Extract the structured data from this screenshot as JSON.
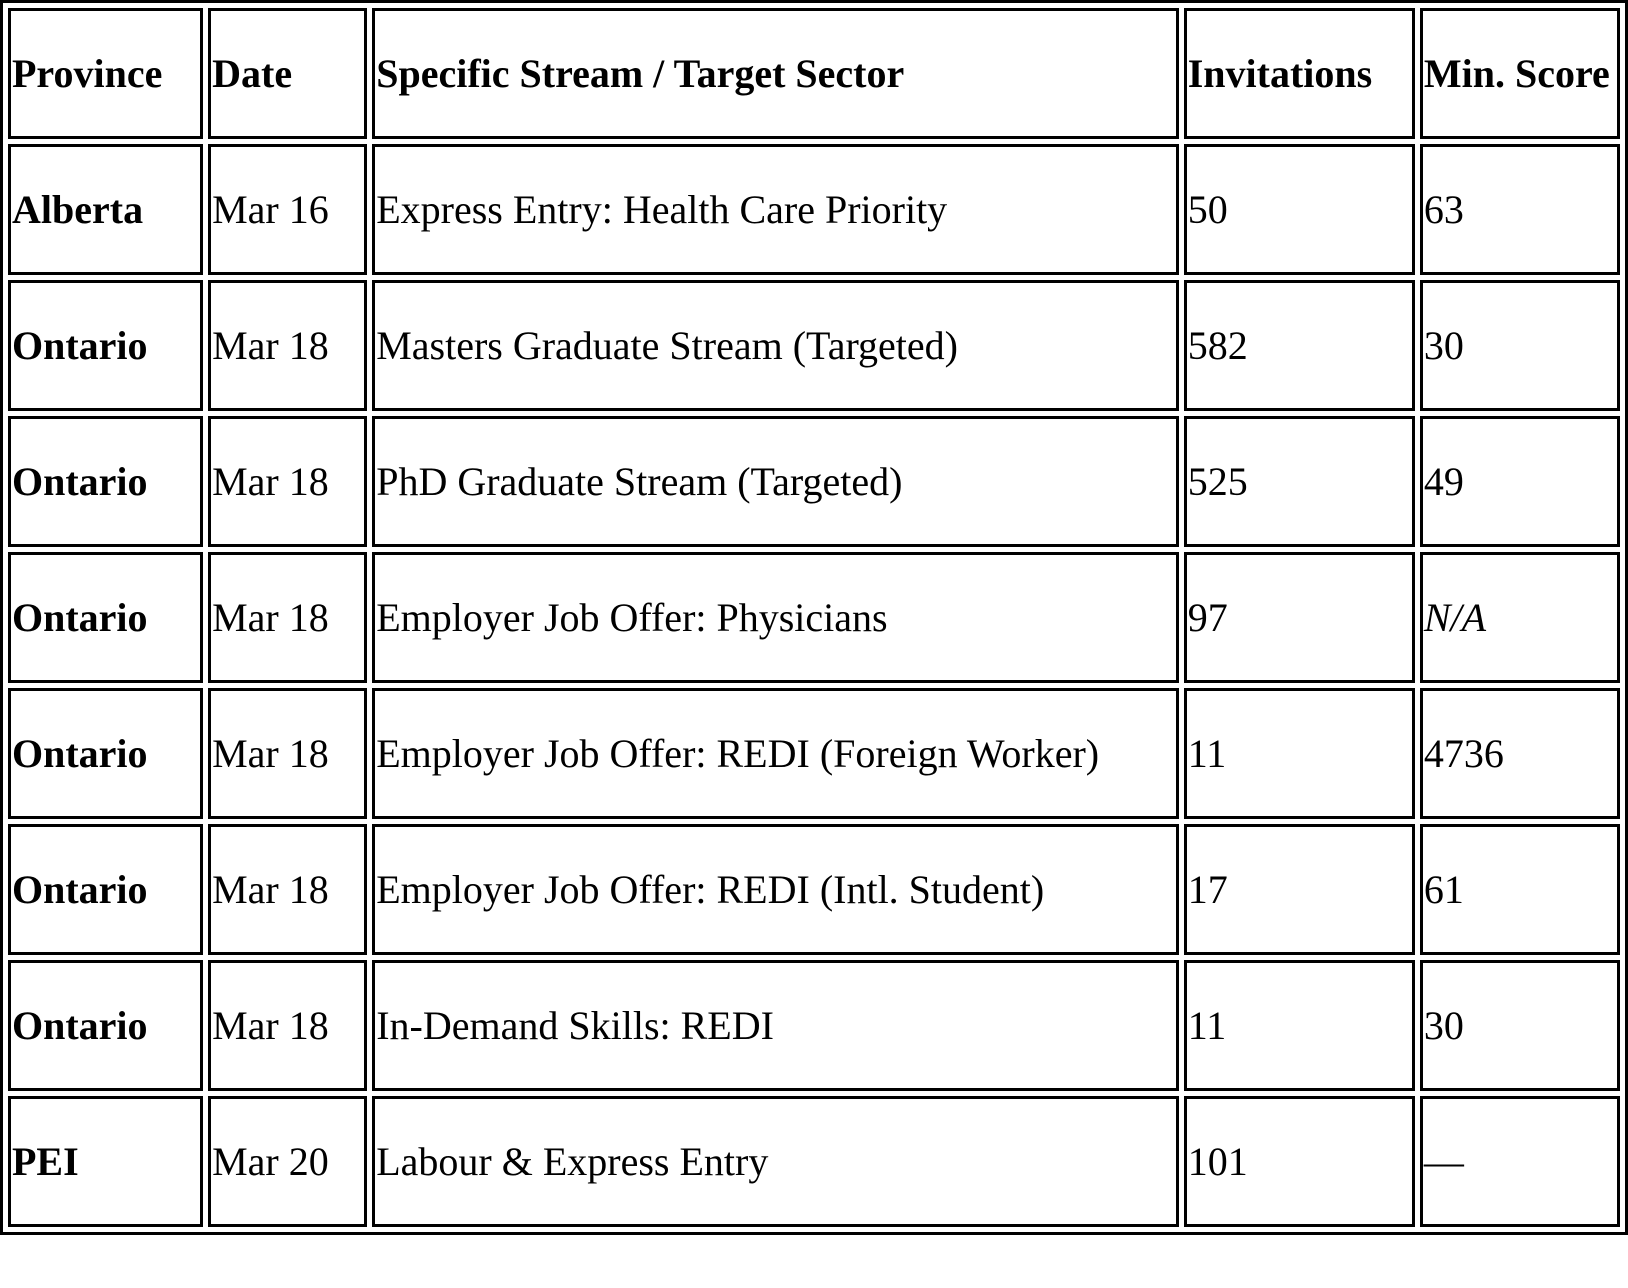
{
  "table": {
    "headers": [
      "Province",
      "Date",
      "Specific Stream / Target Sector",
      "Invitations",
      "Min. Score"
    ],
    "rows": [
      {
        "province": "Alberta",
        "date": "Mar 16",
        "stream": "Express Entry: Health Care Priority",
        "invitations": "50",
        "min_score": "63"
      },
      {
        "province": "Ontario",
        "date": "Mar 18",
        "stream": "Masters Graduate Stream (Targeted)",
        "invitations": "582",
        "min_score": "30"
      },
      {
        "province": "Ontario",
        "date": "Mar 18",
        "stream": "PhD Graduate Stream (Targeted)",
        "invitations": "525",
        "min_score": "49"
      },
      {
        "province": "Ontario",
        "date": "Mar 18",
        "stream": "Employer Job Offer: Physicians",
        "invitations": "97",
        "min_score": "N/A"
      },
      {
        "province": "Ontario",
        "date": "Mar 18",
        "stream": "Employer Job Offer: REDI (Foreign Worker)",
        "invitations": "11",
        "min_score": "4736"
      },
      {
        "province": "Ontario",
        "date": "Mar 18",
        "stream": "Employer Job Offer: REDI (Intl. Student)",
        "invitations": "17",
        "min_score": "61"
      },
      {
        "province": "Ontario",
        "date": "Mar 18",
        "stream": "In-Demand Skills: REDI",
        "invitations": "11",
        "min_score": "30"
      },
      {
        "province": "PEI",
        "date": "Mar 20",
        "stream": "Labour & Express Entry",
        "invitations": "101",
        "min_score": "—"
      }
    ]
  }
}
